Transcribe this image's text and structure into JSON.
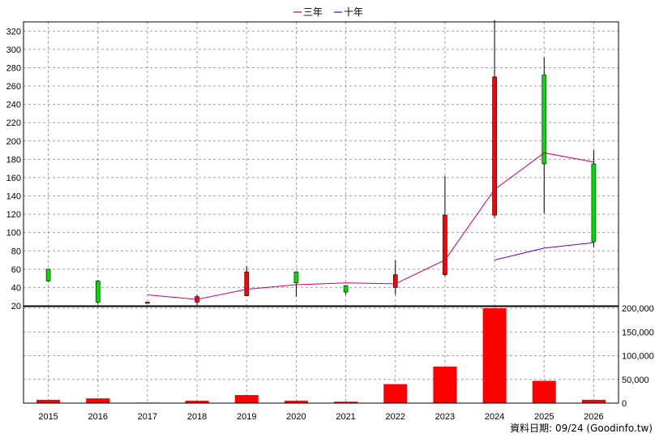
{
  "chart_data": {
    "type": "candlestick",
    "categories": [
      "2015",
      "2016",
      "2017",
      "2018",
      "2019",
      "2020",
      "2021",
      "2022",
      "2023",
      "2024",
      "2025",
      "2026"
    ],
    "legend": [
      {
        "name": "三年",
        "color": "#cc0066"
      },
      {
        "name": "十年",
        "color": "#6600cc"
      }
    ],
    "legend_position": "top",
    "grid": true,
    "colors": {
      "up": "#ff0000",
      "down": "#00dd00",
      "volume": "#ff0000",
      "wick": "#000000"
    },
    "price_axis": {
      "ylim": [
        20,
        330
      ],
      "ticks": [
        20,
        40,
        60,
        80,
        100,
        120,
        140,
        160,
        180,
        200,
        220,
        240,
        260,
        280,
        300,
        320
      ]
    },
    "volume_axis": {
      "ylim": [
        0,
        200000
      ],
      "ticks": [
        0,
        50000,
        100000,
        150000,
        200000
      ],
      "tick_labels": [
        "0",
        "50,000",
        "100,000",
        "150,000",
        "200,000"
      ]
    },
    "candles": [
      {
        "year": "2015",
        "open": 60,
        "high": 60,
        "low": 46,
        "close": 47
      },
      {
        "year": "2016",
        "open": 47,
        "high": 48,
        "low": 22,
        "close": 24
      },
      {
        "year": "2017",
        "open": 24,
        "high": 24,
        "low": 23,
        "close": 24
      },
      {
        "year": "2018",
        "open": 24,
        "high": 32,
        "low": 21,
        "close": 30
      },
      {
        "year": "2019",
        "open": 31,
        "high": 63,
        "low": 31,
        "close": 57
      },
      {
        "year": "2020",
        "open": 57,
        "high": 57,
        "low": 30,
        "close": 45
      },
      {
        "year": "2021",
        "open": 42,
        "high": 42,
        "low": 32,
        "close": 35
      },
      {
        "year": "2022",
        "open": 40,
        "high": 70,
        "low": 32,
        "close": 54
      },
      {
        "year": "2023",
        "open": 54,
        "high": 162,
        "low": 52,
        "close": 119
      },
      {
        "year": "2024",
        "open": 119,
        "high": 332,
        "low": 116,
        "close": 270
      },
      {
        "year": "2025",
        "open": 272,
        "high": 291,
        "low": 121,
        "close": 175
      },
      {
        "year": "2026",
        "open": 175,
        "high": 190,
        "low": 84,
        "close": 90
      }
    ],
    "series": [
      {
        "name": "三年",
        "x": [
          "2017",
          "2018",
          "2019",
          "2020",
          "2021",
          "2022",
          "2023",
          "2024",
          "2025",
          "2026"
        ],
        "values": [
          32,
          27,
          38,
          43,
          45,
          44,
          70,
          147,
          187,
          177
        ]
      },
      {
        "name": "十年",
        "x": [
          "2024",
          "2025",
          "2026"
        ],
        "values": [
          70,
          83,
          89
        ]
      }
    ],
    "volume": [
      7000,
      10000,
      1000,
      5000,
      17000,
      5000,
      3000,
      40000,
      77000,
      200000,
      47000,
      7000
    ]
  },
  "footer_text": "資料日期: 09/24 (Goodinfo.tw)"
}
